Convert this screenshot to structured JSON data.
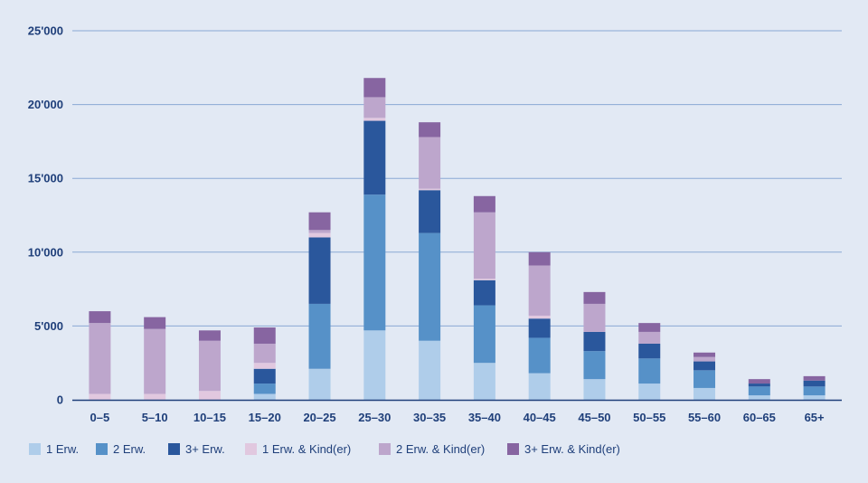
{
  "chart_data": {
    "type": "bar",
    "stacked": true,
    "title": "",
    "xlabel": "",
    "ylabel": "",
    "ylim": [
      0,
      25000
    ],
    "yticks": [
      0,
      5000,
      10000,
      15000,
      20000,
      25000
    ],
    "ytick_labels": [
      "0",
      "5'000",
      "10'000",
      "15'000",
      "20'000",
      "25'000"
    ],
    "grid": true,
    "legend_position": "bottom",
    "categories": [
      "0–5",
      "5–10",
      "10–15",
      "15–20",
      "20–25",
      "25–30",
      "30–35",
      "35–40",
      "40–45",
      "45–50",
      "50–55",
      "55–60",
      "60–65",
      "65+"
    ],
    "series": [
      {
        "name": "1 Erw.",
        "color": "#afcdea",
        "values": [
          0,
          0,
          0,
          400,
          2100,
          4700,
          4000,
          2500,
          1800,
          1400,
          1100,
          800,
          300,
          300
        ]
      },
      {
        "name": "2 Erw.",
        "color": "#5691c8",
        "values": [
          0,
          0,
          0,
          700,
          4400,
          9200,
          7300,
          3900,
          2400,
          1900,
          1700,
          1200,
          600,
          600
        ]
      },
      {
        "name": "3+ Erw.",
        "color": "#2a579c",
        "values": [
          0,
          0,
          0,
          1000,
          4500,
          5000,
          2900,
          1700,
          1300,
          1300,
          1000,
          600,
          200,
          400
        ]
      },
      {
        "name": "1 Erw. & Kind(er)",
        "color": "#e1c8df",
        "values": [
          400,
          400,
          600,
          400,
          300,
          200,
          100,
          100,
          200,
          0,
          0,
          0,
          0,
          0
        ]
      },
      {
        "name": "2 Erw. & Kind(er)",
        "color": "#bda6cc",
        "values": [
          4800,
          4400,
          3400,
          1300,
          200,
          1400,
          3500,
          4500,
          3400,
          1900,
          800,
          300,
          0,
          0
        ]
      },
      {
        "name": "3+ Erw. & Kind(er)",
        "color": "#8765a1",
        "values": [
          800,
          800,
          700,
          1100,
          1200,
          1300,
          1000,
          1100,
          900,
          800,
          600,
          300,
          300,
          300
        ]
      }
    ]
  }
}
